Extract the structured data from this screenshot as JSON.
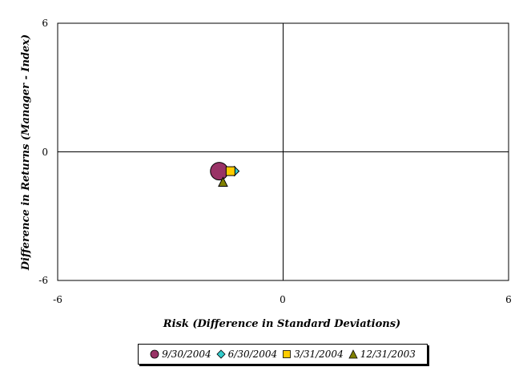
{
  "chart_data": {
    "type": "scatter",
    "title": "",
    "xlabel": "Risk (Difference in Standard Deviations)",
    "ylabel": "Difference in Returns (Manager - Index)",
    "xlim": [
      -6,
      6
    ],
    "ylim": [
      -6,
      6
    ],
    "x_ticks": [
      "-6",
      "0",
      "6"
    ],
    "y_ticks": [
      "6",
      "0",
      "-6"
    ],
    "grid": false,
    "legend_position": "bottom",
    "series": [
      {
        "name": "9/30/2004",
        "marker": "circle",
        "color": "#993366",
        "points": [
          {
            "x": -1.7,
            "y": -0.9
          }
        ]
      },
      {
        "name": "6/30/2004",
        "marker": "diamond",
        "color": "#33cccc",
        "points": [
          {
            "x": -1.3,
            "y": -0.9
          }
        ]
      },
      {
        "name": "3/31/2004",
        "marker": "square",
        "color": "#ffcc00",
        "points": [
          {
            "x": -1.4,
            "y": -0.9
          }
        ]
      },
      {
        "name": "12/31/2003",
        "marker": "triangle",
        "color": "#808000",
        "points": [
          {
            "x": -1.6,
            "y": -1.4
          }
        ]
      }
    ]
  }
}
